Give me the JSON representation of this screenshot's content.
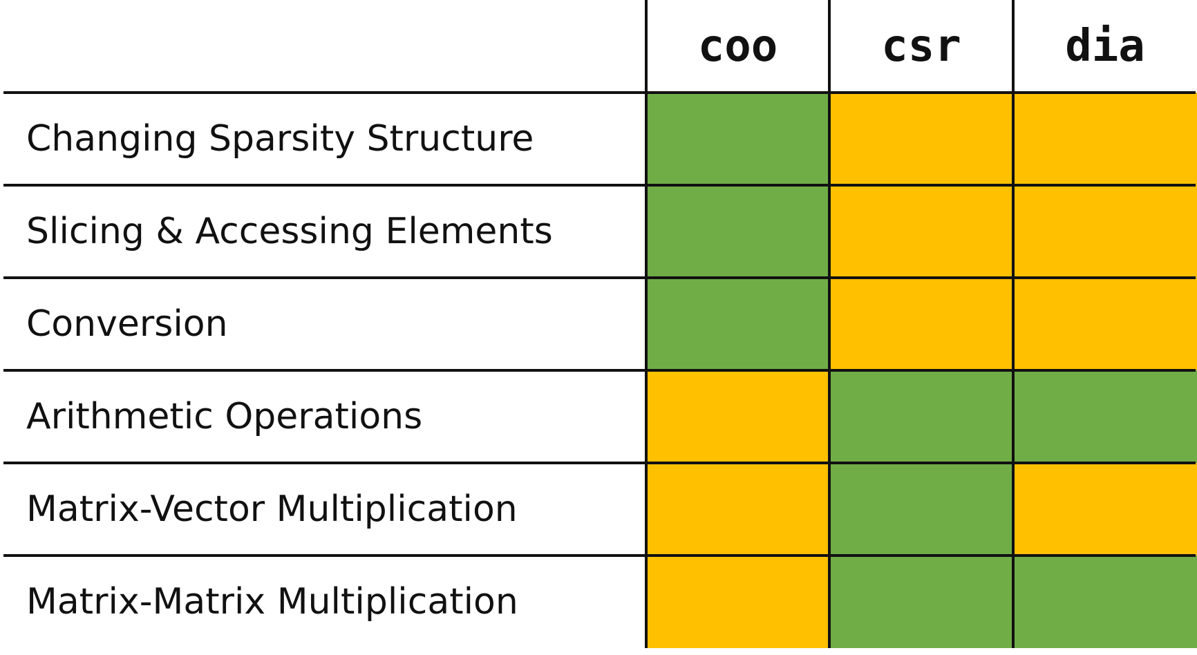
{
  "colors": {
    "good": "#70ad47",
    "fair": "#ffc000",
    "lines": "#111111",
    "text": "#111111"
  },
  "columns": [
    "coo",
    "csr",
    "dia"
  ],
  "rows": [
    {
      "label": "Changing Sparsity Structure",
      "ratings": [
        "good",
        "fair",
        "fair"
      ]
    },
    {
      "label": "Slicing & Accessing Elements",
      "ratings": [
        "good",
        "fair",
        "fair"
      ]
    },
    {
      "label": "Conversion",
      "ratings": [
        "good",
        "fair",
        "fair"
      ]
    },
    {
      "label": "Arithmetic Operations",
      "ratings": [
        "fair",
        "good",
        "good"
      ]
    },
    {
      "label": "Matrix-Vector Multiplication",
      "ratings": [
        "fair",
        "good",
        "fair"
      ]
    },
    {
      "label": "Matrix-Matrix Multiplication",
      "ratings": [
        "fair",
        "good",
        "good"
      ]
    }
  ]
}
